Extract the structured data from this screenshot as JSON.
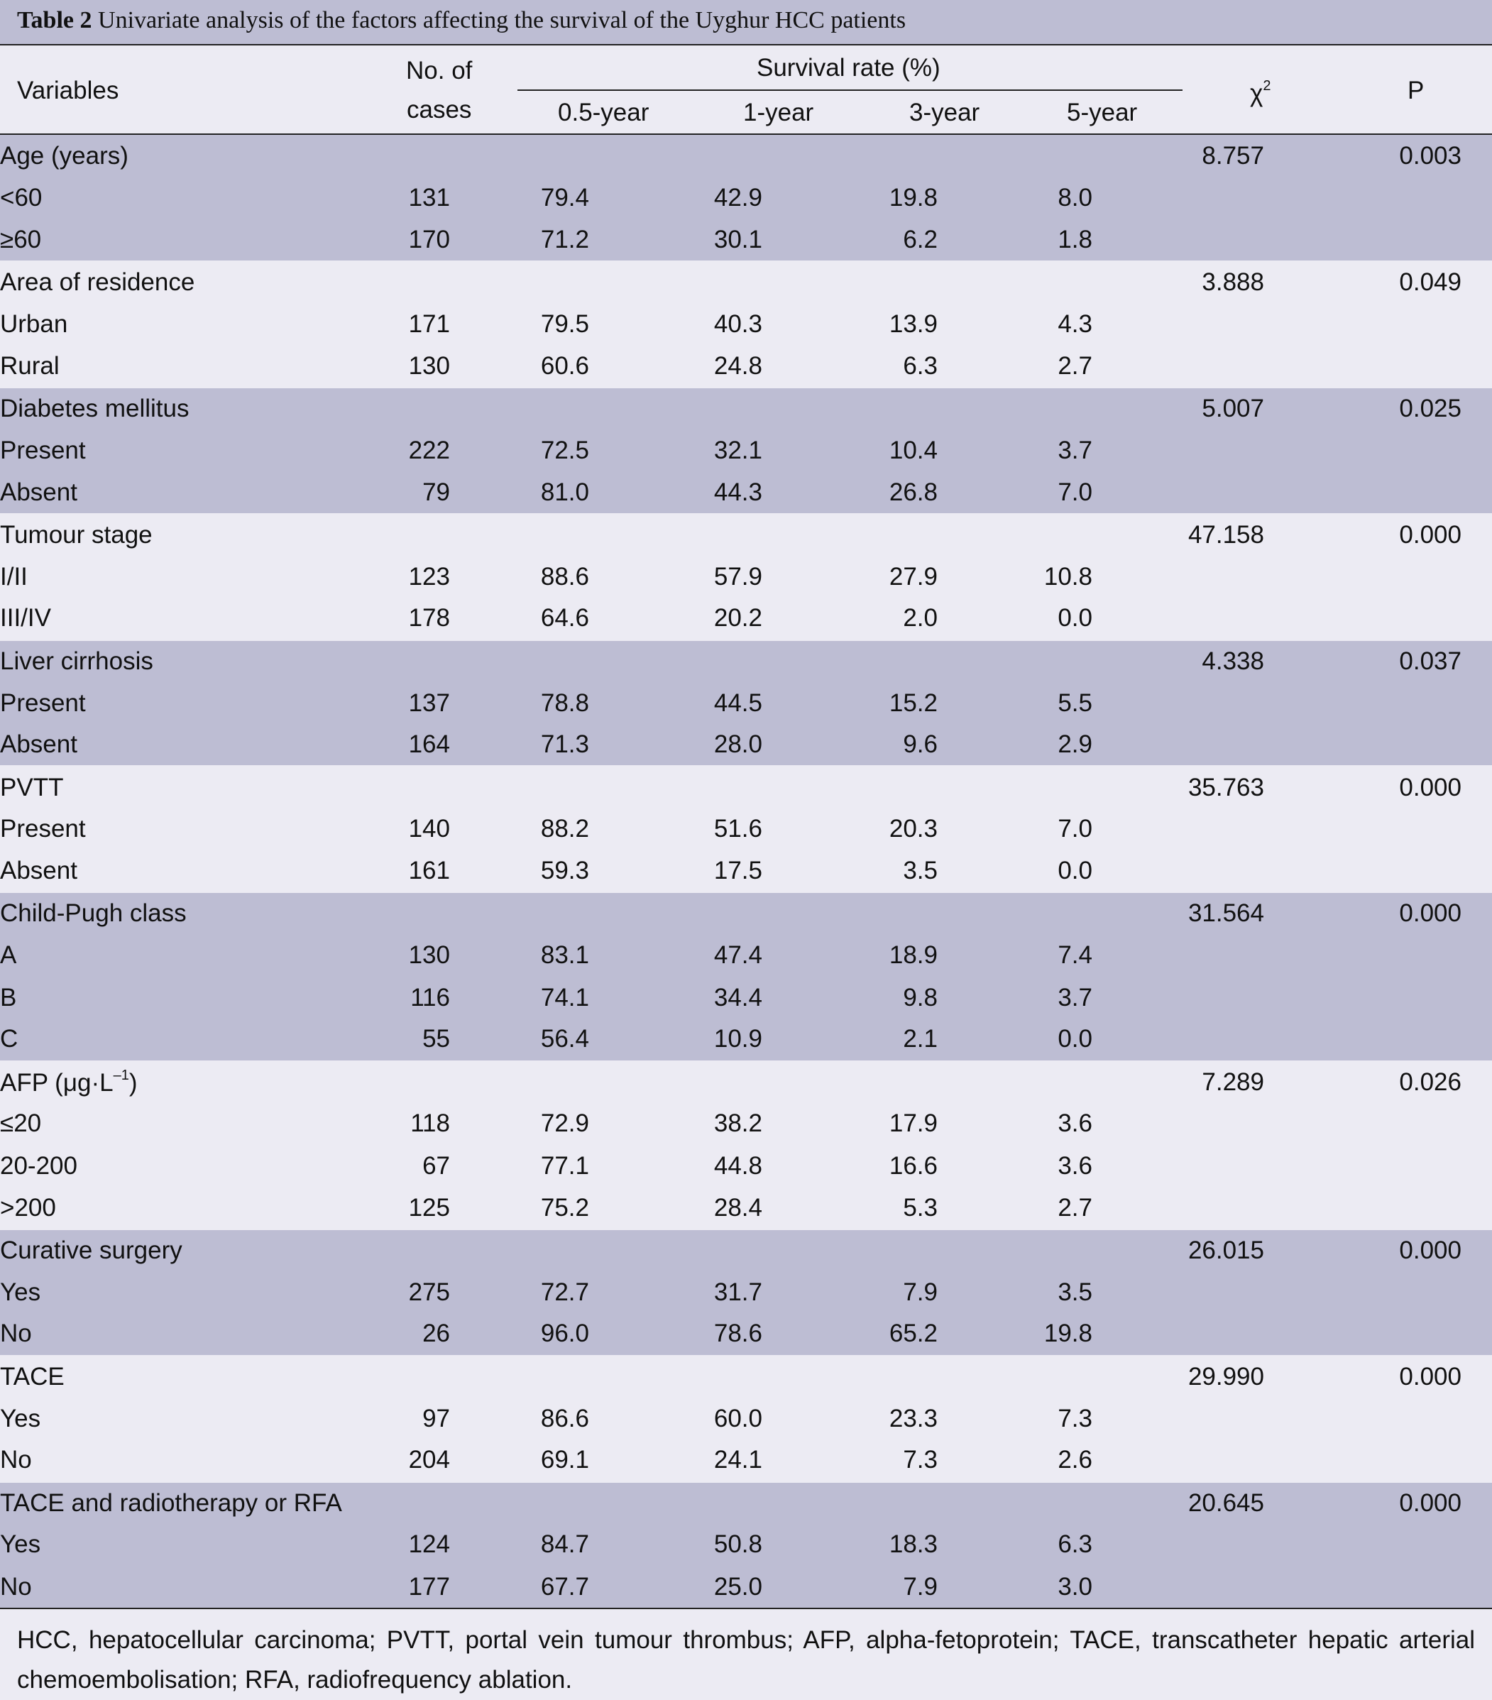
{
  "caption": {
    "label": "Table 2",
    "text": "Univariate analysis of the factors affecting the survival of the Uyghur HCC patients"
  },
  "header": {
    "variables": "Variables",
    "cases_line1": "No. of",
    "cases_line2": "cases",
    "survival": "Survival rate (%)",
    "col_05": "0.5-year",
    "col_1": "1-year",
    "col_3": "3-year",
    "col_5": "5-year",
    "chi_base": "χ",
    "chi_sup": "2",
    "p": "P"
  },
  "groups": [
    {
      "name": "Age (years)",
      "chi": "8.757",
      "p": "0.003",
      "rows": [
        {
          "label": "<60",
          "n": "131",
          "y05": "79.4",
          "y1": "42.9",
          "y3": "19.8",
          "y5": "8.0"
        },
        {
          "label": "≥60",
          "n": "170",
          "y05": "71.2",
          "y1": "30.1",
          "y3": "6.2",
          "y5": "1.8"
        }
      ]
    },
    {
      "name": "Area of residence",
      "chi": "3.888",
      "p": "0.049",
      "rows": [
        {
          "label": "Urban",
          "n": "171",
          "y05": "79.5",
          "y1": "40.3",
          "y3": "13.9",
          "y5": "4.3"
        },
        {
          "label": "Rural",
          "n": "130",
          "y05": "60.6",
          "y1": "24.8",
          "y3": "6.3",
          "y5": "2.7"
        }
      ]
    },
    {
      "name": "Diabetes mellitus",
      "chi": "5.007",
      "p": "0.025",
      "rows": [
        {
          "label": "Present",
          "n": "222",
          "y05": "72.5",
          "y1": "32.1",
          "y3": "10.4",
          "y5": "3.7"
        },
        {
          "label": "Absent",
          "n": "79",
          "y05": "81.0",
          "y1": "44.3",
          "y3": "26.8",
          "y5": "7.0"
        }
      ]
    },
    {
      "name": "Tumour stage",
      "chi": "47.158",
      "p": "0.000",
      "rows": [
        {
          "label": "I/II",
          "n": "123",
          "y05": "88.6",
          "y1": "57.9",
          "y3": "27.9",
          "y5": "10.8"
        },
        {
          "label": "III/IV",
          "n": "178",
          "y05": "64.6",
          "y1": "20.2",
          "y3": "2.0",
          "y5": "0.0"
        }
      ]
    },
    {
      "name": "Liver cirrhosis",
      "chi": "4.338",
      "p": "0.037",
      "rows": [
        {
          "label": "Present",
          "n": "137",
          "y05": "78.8",
          "y1": "44.5",
          "y3": "15.2",
          "y5": "5.5"
        },
        {
          "label": "Absent",
          "n": "164",
          "y05": "71.3",
          "y1": "28.0",
          "y3": "9.6",
          "y5": "2.9"
        }
      ]
    },
    {
      "name": "PVTT",
      "chi": "35.763",
      "p": "0.000",
      "rows": [
        {
          "label": "Present",
          "n": "140",
          "y05": "88.2",
          "y1": "51.6",
          "y3": "20.3",
          "y5": "7.0"
        },
        {
          "label": "Absent",
          "n": "161",
          "y05": "59.3",
          "y1": "17.5",
          "y3": "3.5",
          "y5": "0.0"
        }
      ]
    },
    {
      "name": "Child-Pugh class",
      "chi": "31.564",
      "p": "0.000",
      "rows": [
        {
          "label": "A",
          "n": "130",
          "y05": "83.1",
          "y1": "47.4",
          "y3": "18.9",
          "y5": "7.4"
        },
        {
          "label": "B",
          "n": "116",
          "y05": "74.1",
          "y1": "34.4",
          "y3": "9.8",
          "y5": "3.7"
        },
        {
          "label": "C",
          "n": "55",
          "y05": "56.4",
          "y1": "10.9",
          "y3": "2.1",
          "y5": "0.0"
        }
      ]
    },
    {
      "name": "AFP (μg·L",
      "name_sup": "–1",
      "name_tail": ")",
      "chi": "7.289",
      "p": "0.026",
      "rows": [
        {
          "label": "≤20",
          "n": "118",
          "y05": "72.9",
          "y1": "38.2",
          "y3": "17.9",
          "y5": "3.6"
        },
        {
          "label": "20-200",
          "n": "67",
          "y05": "77.1",
          "y1": "44.8",
          "y3": "16.6",
          "y5": "3.6"
        },
        {
          "label": ">200",
          "n": "125",
          "y05": "75.2",
          "y1": "28.4",
          "y3": "5.3",
          "y5": "2.7"
        }
      ]
    },
    {
      "name": "Curative surgery",
      "chi": "26.015",
      "p": "0.000",
      "rows": [
        {
          "label": "Yes",
          "n": "275",
          "y05": "72.7",
          "y1": "31.7",
          "y3": "7.9",
          "y5": "3.5"
        },
        {
          "label": "No",
          "n": "26",
          "y05": "96.0",
          "y1": "78.6",
          "y3": "65.2",
          "y5": "19.8"
        }
      ]
    },
    {
      "name": "TACE",
      "chi": "29.990",
      "p": "0.000",
      "rows": [
        {
          "label": "Yes",
          "n": "97",
          "y05": "86.6",
          "y1": "60.0",
          "y3": "23.3",
          "y5": "7.3"
        },
        {
          "label": "No",
          "n": "204",
          "y05": "69.1",
          "y1": "24.1",
          "y3": "7.3",
          "y5": "2.6"
        }
      ]
    },
    {
      "name": "TACE and radiotherapy or RFA",
      "chi": "20.645",
      "p": "0.000",
      "rows": [
        {
          "label": "Yes",
          "n": "124",
          "y05": "84.7",
          "y1": "50.8",
          "y3": "18.3",
          "y5": "6.3"
        },
        {
          "label": "No",
          "n": "177",
          "y05": "67.7",
          "y1": "25.0",
          "y3": "7.9",
          "y5": "3.0"
        }
      ]
    }
  ],
  "footer": "HCC, hepatocellular carcinoma; PVTT, portal vein tumour thrombus; AFP, alpha-fetoprotein; TACE, transcatheter hepatic arterial chemoembolisation; RFA, radiofrequency ablation."
}
